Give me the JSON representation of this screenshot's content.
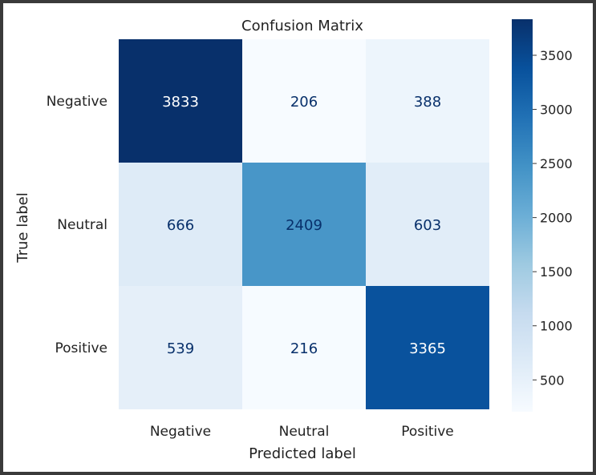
{
  "chart_data": {
    "type": "heatmap",
    "title": "Confusion Matrix",
    "xlabel": "Predicted label",
    "ylabel": "True label",
    "x_categories": [
      "Negative",
      "Neutral",
      "Positive"
    ],
    "y_categories": [
      "Negative",
      "Neutral",
      "Positive"
    ],
    "matrix": [
      [
        3833,
        206,
        388
      ],
      [
        666,
        2409,
        603
      ],
      [
        539,
        216,
        3365
      ]
    ],
    "colormap": "Blues",
    "colorbar": {
      "ticks": [
        500,
        1000,
        1500,
        2000,
        2500,
        3000,
        3500
      ],
      "range": [
        206,
        3833
      ]
    },
    "grid": false
  }
}
